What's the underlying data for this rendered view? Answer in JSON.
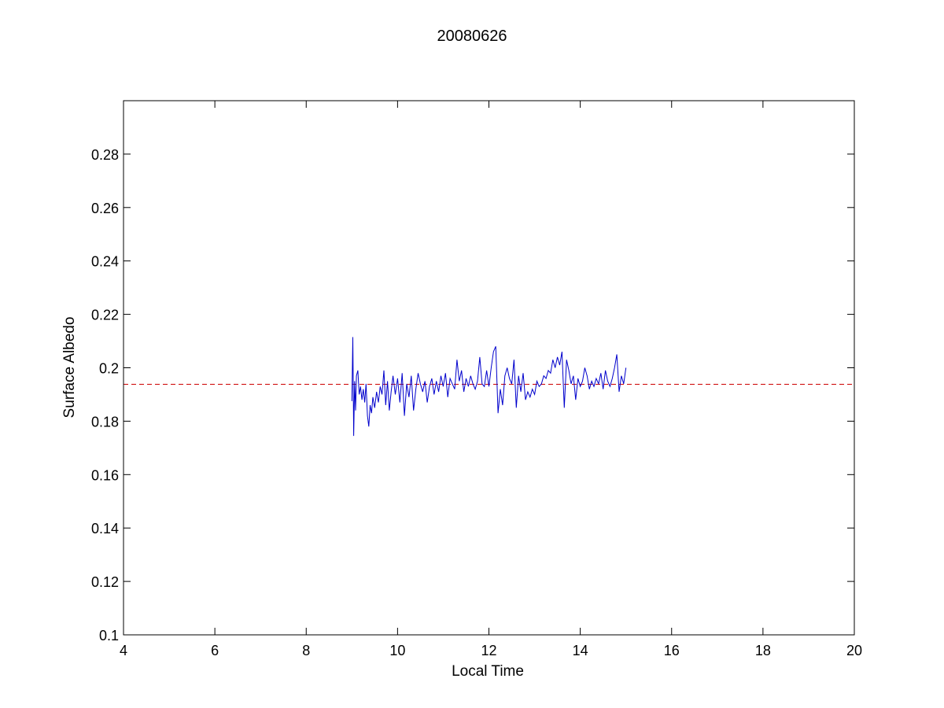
{
  "chart_data": {
    "type": "line",
    "title": "20080626",
    "xlabel": "Local Time",
    "ylabel": "Surface Albedo",
    "xlim": [
      4,
      20
    ],
    "ylim": [
      0.1,
      0.3
    ],
    "xticks": [
      4,
      6,
      8,
      10,
      12,
      14,
      16,
      18,
      20
    ],
    "xtick_labels": [
      "4",
      "6",
      "8",
      "10",
      "12",
      "14",
      "16",
      "18",
      "20"
    ],
    "yticks": [
      0.1,
      0.12,
      0.14,
      0.16,
      0.18,
      0.2,
      0.22,
      0.24,
      0.26,
      0.28
    ],
    "ytick_labels": [
      "0.1",
      "0.12",
      "0.14",
      "0.16",
      "0.18",
      "0.2",
      "0.22",
      "0.24",
      "0.26",
      "0.28"
    ],
    "grid": false,
    "reference_line": {
      "y": 0.1938,
      "style": "dashed",
      "color": "#cc0000"
    },
    "series": [
      {
        "color": "#0000cc",
        "x": [
          9.0,
          9.02,
          9.04,
          9.06,
          9.08,
          9.1,
          9.13,
          9.16,
          9.19,
          9.22,
          9.25,
          9.28,
          9.31,
          9.34,
          9.37,
          9.4,
          9.43,
          9.46,
          9.5,
          9.54,
          9.58,
          9.62,
          9.66,
          9.7,
          9.74,
          9.78,
          9.82,
          9.86,
          9.9,
          9.95,
          10.0,
          10.05,
          10.1,
          10.15,
          10.2,
          10.25,
          10.3,
          10.35,
          10.4,
          10.45,
          10.5,
          10.55,
          10.6,
          10.65,
          10.7,
          10.75,
          10.8,
          10.85,
          10.9,
          10.95,
          11.0,
          11.05,
          11.1,
          11.15,
          11.2,
          11.25,
          11.3,
          11.35,
          11.4,
          11.45,
          11.5,
          11.55,
          11.6,
          11.65,
          11.7,
          11.75,
          11.8,
          11.85,
          11.9,
          11.95,
          12.0,
          12.05,
          12.1,
          12.15,
          12.2,
          12.25,
          12.3,
          12.35,
          12.4,
          12.45,
          12.5,
          12.55,
          12.6,
          12.65,
          12.7,
          12.75,
          12.8,
          12.85,
          12.9,
          12.95,
          13.0,
          13.05,
          13.1,
          13.15,
          13.2,
          13.25,
          13.3,
          13.35,
          13.4,
          13.45,
          13.5,
          13.55,
          13.6,
          13.65,
          13.7,
          13.75,
          13.8,
          13.85,
          13.9,
          13.95,
          14.0,
          14.05,
          14.1,
          14.15,
          14.2,
          14.25,
          14.3,
          14.35,
          14.4,
          14.45,
          14.5,
          14.55,
          14.6,
          14.65,
          14.7,
          14.75,
          14.8,
          14.85,
          14.9,
          14.95,
          15.0
        ],
        "y": [
          0.1875,
          0.2115,
          0.1745,
          0.195,
          0.184,
          0.197,
          0.199,
          0.19,
          0.193,
          0.188,
          0.192,
          0.187,
          0.194,
          0.182,
          0.178,
          0.186,
          0.183,
          0.189,
          0.185,
          0.191,
          0.187,
          0.193,
          0.19,
          0.199,
          0.186,
          0.195,
          0.184,
          0.191,
          0.197,
          0.19,
          0.196,
          0.187,
          0.198,
          0.182,
          0.194,
          0.189,
          0.197,
          0.184,
          0.192,
          0.198,
          0.194,
          0.191,
          0.195,
          0.187,
          0.193,
          0.196,
          0.19,
          0.195,
          0.191,
          0.197,
          0.193,
          0.198,
          0.189,
          0.196,
          0.194,
          0.192,
          0.203,
          0.195,
          0.199,
          0.191,
          0.196,
          0.193,
          0.197,
          0.194,
          0.192,
          0.195,
          0.204,
          0.194,
          0.193,
          0.199,
          0.193,
          0.2,
          0.206,
          0.208,
          0.183,
          0.192,
          0.186,
          0.197,
          0.2,
          0.196,
          0.194,
          0.203,
          0.185,
          0.197,
          0.191,
          0.198,
          0.188,
          0.191,
          0.189,
          0.192,
          0.19,
          0.195,
          0.193,
          0.194,
          0.197,
          0.196,
          0.199,
          0.198,
          0.203,
          0.2,
          0.204,
          0.201,
          0.206,
          0.185,
          0.203,
          0.199,
          0.194,
          0.197,
          0.188,
          0.196,
          0.193,
          0.195,
          0.2,
          0.197,
          0.192,
          0.195,
          0.193,
          0.196,
          0.194,
          0.198,
          0.192,
          0.199,
          0.195,
          0.193,
          0.196,
          0.2,
          0.205,
          0.191,
          0.197,
          0.194,
          0.2
        ]
      }
    ]
  }
}
